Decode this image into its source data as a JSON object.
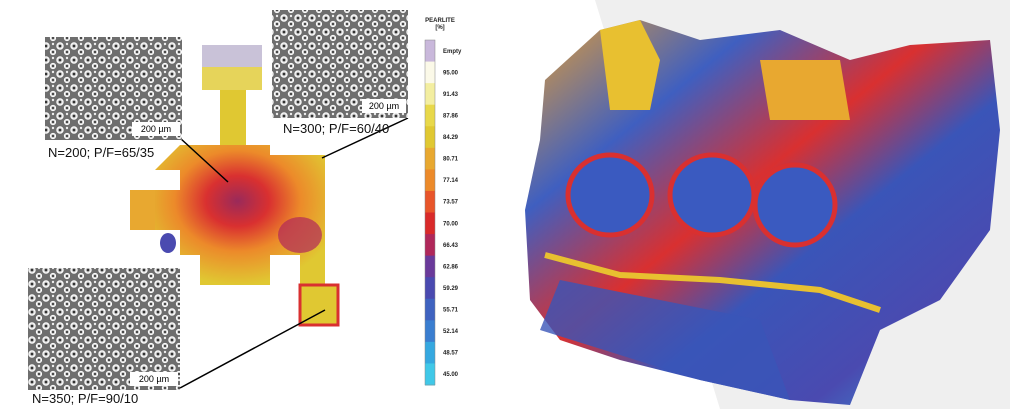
{
  "micrographs": [
    {
      "caption": "N=200; P/F=65/35",
      "scale": "200 µm"
    },
    {
      "caption": "N=300; P/F=60/40",
      "scale": "200 µm"
    },
    {
      "caption": "N=350; P/F=90/10",
      "scale": "200 µm"
    }
  ],
  "legend": {
    "title": "PEARLITE",
    "unit": "[%]",
    "labels": [
      "Empty",
      "95.00",
      "91.43",
      "87.86",
      "84.29",
      "80.71",
      "77.14",
      "73.57",
      "70.00",
      "66.43",
      "62.86",
      "59.29",
      "55.71",
      "52.14",
      "48.57",
      "45.00"
    ]
  }
}
